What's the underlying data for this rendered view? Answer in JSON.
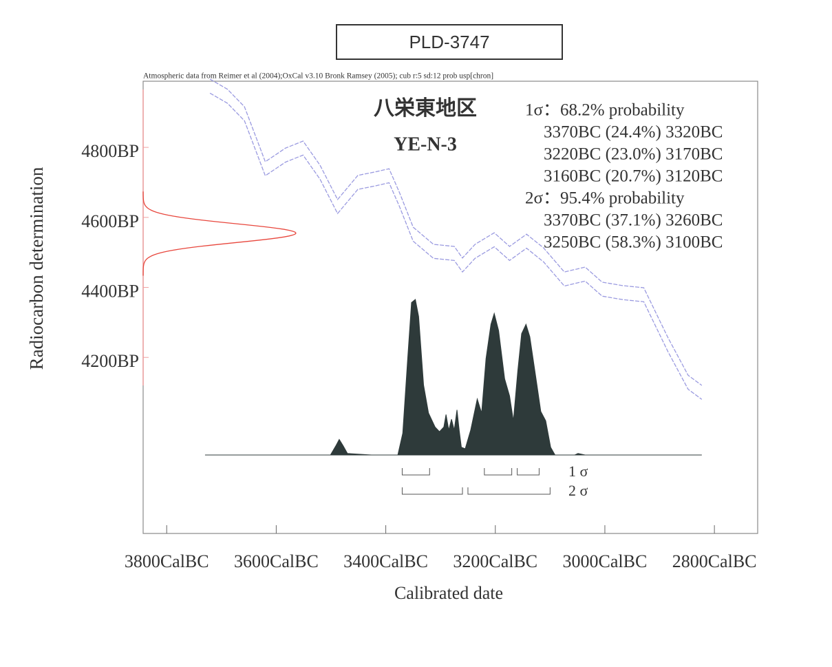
{
  "chart_data": {
    "type": "calibration",
    "title": "PLD-3747",
    "subtitle": "Atmospheric data from Reimer et al (2004);OxCal v3.10 Bronk Ramsey (2005); cub r:5 sd:12 prob usp[chron]",
    "site": "八栄東地区",
    "sample": "YE-N-3",
    "xlabel": "Calibrated date",
    "ylabel": "Radiocarbon determination",
    "xlim": [
      3843,
      2721
    ],
    "ylim": [
      3697,
      4989
    ],
    "xticks": [
      {
        "value": 3800,
        "label": "3800CalBC"
      },
      {
        "value": 3600,
        "label": "3600CalBC"
      },
      {
        "value": 3400,
        "label": "3400CalBC"
      },
      {
        "value": 3200,
        "label": "3200CalBC"
      },
      {
        "value": 3000,
        "label": "3000CalBC"
      },
      {
        "value": 2800,
        "label": "2800CalBC"
      }
    ],
    "yticks": [
      {
        "value": 4800,
        "label": "4800BP"
      },
      {
        "value": 4600,
        "label": "4600BP"
      },
      {
        "value": 4400,
        "label": "4400BP"
      },
      {
        "value": 4200,
        "label": "4200BP"
      }
    ],
    "curve": {
      "color": "#9a9ae0",
      "x": [
        3721,
        3689,
        3658,
        3620,
        3583,
        3551,
        3520,
        3488,
        3451,
        3419,
        3394,
        3375,
        3350,
        3313,
        3275,
        3260,
        3237,
        3202,
        3174,
        3143,
        3112,
        3074,
        3036,
        3005,
        2967,
        2929,
        2885,
        2848,
        2823
      ],
      "upper": [
        4995,
        4966,
        4916,
        4759,
        4798,
        4818,
        4749,
        4651,
        4720,
        4730,
        4739,
        4671,
        4572,
        4523,
        4517,
        4484,
        4523,
        4556,
        4517,
        4552,
        4513,
        4444,
        4458,
        4415,
        4405,
        4399,
        4257,
        4149,
        4120
      ],
      "lower": [
        4955,
        4926,
        4876,
        4719,
        4758,
        4778,
        4709,
        4611,
        4680,
        4690,
        4699,
        4631,
        4532,
        4483,
        4477,
        4444,
        4483,
        4516,
        4477,
        4512,
        4473,
        4404,
        4418,
        4375,
        4365,
        4359,
        4217,
        4109,
        4080
      ]
    },
    "measurement": {
      "value": 4555,
      "error": 27,
      "color": "#e8463c"
    },
    "distribution": {
      "color": "#2e3a3a",
      "x": [
        3730,
        3501,
        3491,
        3485,
        3478,
        3470,
        3426,
        3378,
        3369,
        3360,
        3353,
        3346,
        3340,
        3331,
        3322,
        3310,
        3302,
        3294,
        3290,
        3285,
        3280,
        3275,
        3270,
        3266,
        3262,
        3255,
        3245,
        3233,
        3225,
        3217,
        3208,
        3202,
        3194,
        3183,
        3174,
        3167,
        3159,
        3152,
        3144,
        3137,
        3124,
        3117,
        3108,
        3099,
        3091,
        3055,
        3049,
        3036,
        2823
      ],
      "values": [
        0,
        0,
        0.06,
        0.1,
        0.06,
        0.01,
        0,
        0,
        0.14,
        0.62,
        0.98,
        1.0,
        0.89,
        0.45,
        0.27,
        0.18,
        0.15,
        0.18,
        0.26,
        0.16,
        0.23,
        0.16,
        0.29,
        0.16,
        0.05,
        0.04,
        0.16,
        0.36,
        0.27,
        0.62,
        0.84,
        0.91,
        0.8,
        0.49,
        0.38,
        0.22,
        0.54,
        0.78,
        0.84,
        0.76,
        0.45,
        0.28,
        0.22,
        0.05,
        0,
        0,
        0.01,
        0,
        0
      ]
    },
    "ranges": [
      {
        "heading": "1σ：68.2% probability",
        "label": "1 σ",
        "intervals": [
          {
            "from": 3370,
            "to": 3320,
            "label": "3370BC (24.4%) 3320BC"
          },
          {
            "from": 3220,
            "to": 3170,
            "label": "3220BC (23.0%) 3170BC"
          },
          {
            "from": 3160,
            "to": 3120,
            "label": "3160BC (20.7%) 3120BC"
          }
        ]
      },
      {
        "heading": "2σ：95.4% probability",
        "label": "2 σ",
        "intervals": [
          {
            "from": 3370,
            "to": 3260,
            "label": "3370BC (37.1%) 3260BC"
          },
          {
            "from": 3250,
            "to": 3100,
            "label": "3250BC (58.3%) 3100BC"
          }
        ]
      }
    ]
  }
}
